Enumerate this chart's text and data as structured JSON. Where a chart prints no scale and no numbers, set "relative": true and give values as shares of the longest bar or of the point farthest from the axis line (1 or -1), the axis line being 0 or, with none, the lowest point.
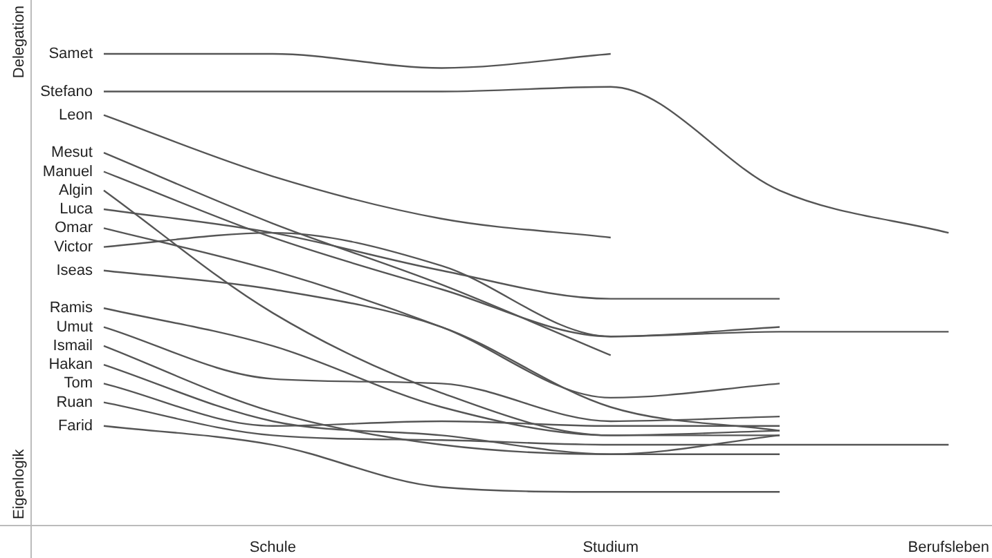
{
  "chart_data": {
    "type": "line",
    "relative": true,
    "annotations": [
      "Delegation",
      "Eigenlogik"
    ],
    "categories": [
      null,
      "Schule",
      null,
      "Studium",
      null,
      "Berufsleben"
    ],
    "legend": false,
    "grid": false,
    "marker": "none",
    "series": [
      {
        "name": "Samet",
        "color": "#555555",
        "values": [
          1.0,
          1.0,
          0.97,
          1.0,
          null,
          null
        ]
      },
      {
        "name": "Stefano",
        "color": "#555555",
        "values": [
          0.92,
          0.92,
          0.92,
          0.93,
          0.71,
          0.62
        ]
      },
      {
        "name": "Leon",
        "color": "#555555",
        "values": [
          0.87,
          0.74,
          0.65,
          0.61,
          null,
          null
        ]
      },
      {
        "name": "Mesut",
        "color": "#555555",
        "values": [
          0.79,
          0.64,
          0.51,
          0.36,
          null,
          null
        ]
      },
      {
        "name": "Manuel",
        "color": "#555555",
        "values": [
          0.75,
          0.61,
          0.5,
          0.4,
          0.41,
          0.41
        ]
      },
      {
        "name": "Algin",
        "color": "#555555",
        "values": [
          0.71,
          0.45,
          0.28,
          0.19,
          0.2,
          null
        ]
      },
      {
        "name": "Luca",
        "color": "#555555",
        "values": [
          0.67,
          0.62,
          0.54,
          0.48,
          0.48,
          null
        ]
      },
      {
        "name": "Omar",
        "color": "#555555",
        "values": [
          0.63,
          0.54,
          0.42,
          0.27,
          0.3,
          null
        ]
      },
      {
        "name": "Victor",
        "color": "#555555",
        "values": [
          0.59,
          0.62,
          0.55,
          0.4,
          0.42,
          null
        ]
      },
      {
        "name": "Iseas",
        "color": "#555555",
        "values": [
          0.54,
          0.5,
          0.42,
          0.25,
          0.2,
          null
        ]
      },
      {
        "name": "Ramis",
        "color": "#555555",
        "values": [
          0.46,
          0.38,
          0.25,
          0.19,
          0.19,
          null
        ]
      },
      {
        "name": "Umut",
        "color": "#555555",
        "values": [
          0.42,
          0.31,
          0.3,
          0.22,
          0.23,
          null
        ]
      },
      {
        "name": "Ismail",
        "color": "#555555",
        "values": [
          0.38,
          0.24,
          0.17,
          0.15,
          0.15,
          null
        ]
      },
      {
        "name": "Hakan",
        "color": "#555555",
        "values": [
          0.34,
          0.22,
          0.19,
          0.15,
          0.19,
          null
        ]
      },
      {
        "name": "Tom",
        "color": "#555555",
        "values": [
          0.3,
          0.21,
          0.22,
          0.21,
          0.21,
          null
        ]
      },
      {
        "name": "Ruan",
        "color": "#555555",
        "values": [
          0.26,
          0.19,
          0.18,
          0.17,
          0.17,
          0.17
        ]
      },
      {
        "name": "Farid",
        "color": "#555555",
        "values": [
          0.21,
          0.17,
          0.08,
          0.07,
          0.07,
          null
        ]
      }
    ]
  }
}
